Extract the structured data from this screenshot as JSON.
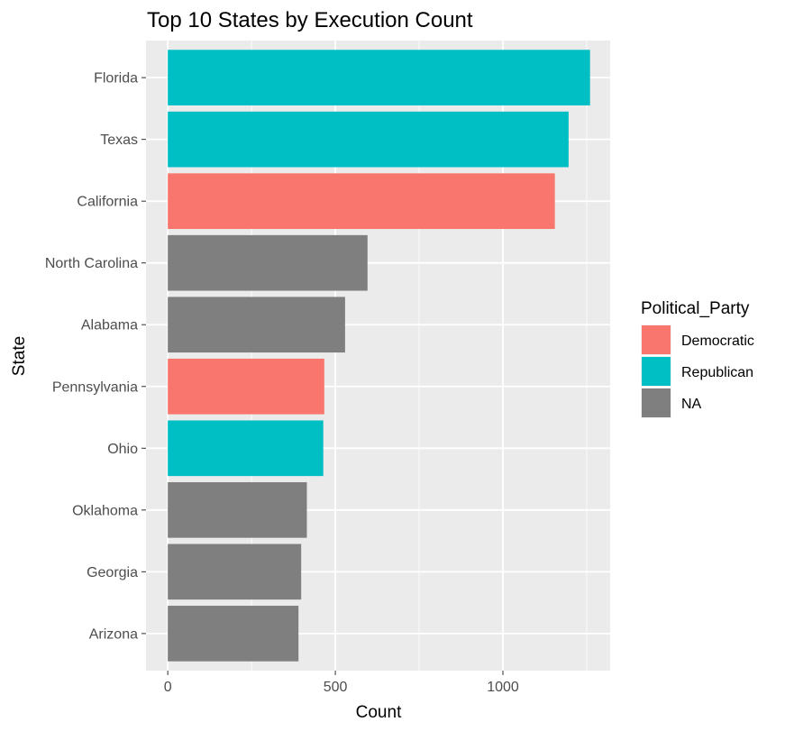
{
  "chart_data": {
    "type": "bar",
    "orientation": "horizontal",
    "title": "Top 10 States by Execution Count",
    "xlabel": "Count",
    "ylabel": "State",
    "xlim": [
      -65,
      1320
    ],
    "x_ticks": [
      0,
      500,
      1000
    ],
    "x_tick_labels": [
      "0",
      "500",
      "1000"
    ],
    "grid": true,
    "legend_position": "right",
    "legend_title": "Political_Party",
    "categories": [
      "Florida",
      "Texas",
      "California",
      "North Carolina",
      "Alabama",
      "Pennsylvania",
      "Ohio",
      "Oklahoma",
      "Georgia",
      "Arizona"
    ],
    "values": [
      1260,
      1196,
      1155,
      596,
      529,
      467,
      464,
      415,
      398,
      390
    ],
    "party": [
      "Republican",
      "Republican",
      "Democratic",
      "NA",
      "NA",
      "Democratic",
      "Republican",
      "NA",
      "NA",
      "NA"
    ],
    "legend": [
      {
        "label": "Democratic",
        "color": "#F8766D"
      },
      {
        "label": "Republican",
        "color": "#00BFC4"
      },
      {
        "label": "NA",
        "color": "#7F7F7F"
      }
    ],
    "colors": {
      "panel_background": "#EBEBEB",
      "grid": "#FFFFFF"
    }
  }
}
